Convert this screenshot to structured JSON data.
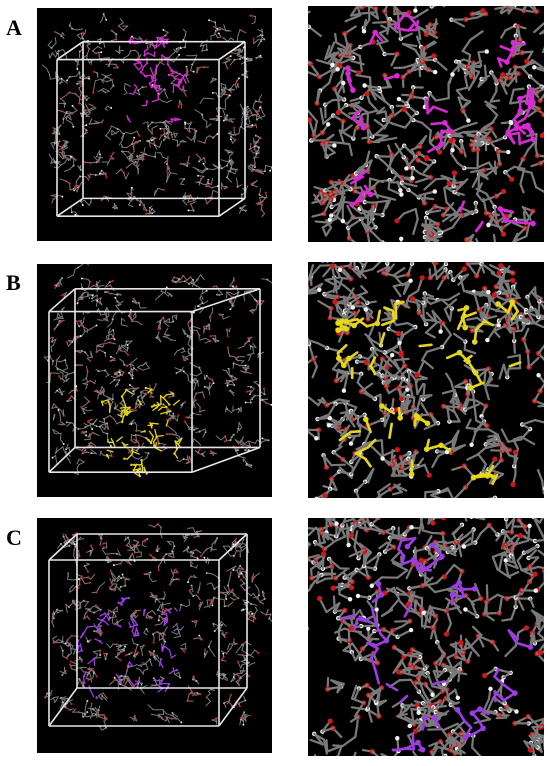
{
  "figure": {
    "rows": [
      {
        "label": "A",
        "highlight_color": "#d62ad2"
      },
      {
        "label": "B",
        "highlight_color": "#e6d619"
      },
      {
        "label": "C",
        "highlight_color": "#9a3ee0"
      }
    ],
    "colors": {
      "background": "#000000",
      "box_edge": "#e6e6e6",
      "carbon_bond": "#7a7a7a",
      "oxygen": "#d01818",
      "hydrogen": "#f2f2f2"
    }
  }
}
